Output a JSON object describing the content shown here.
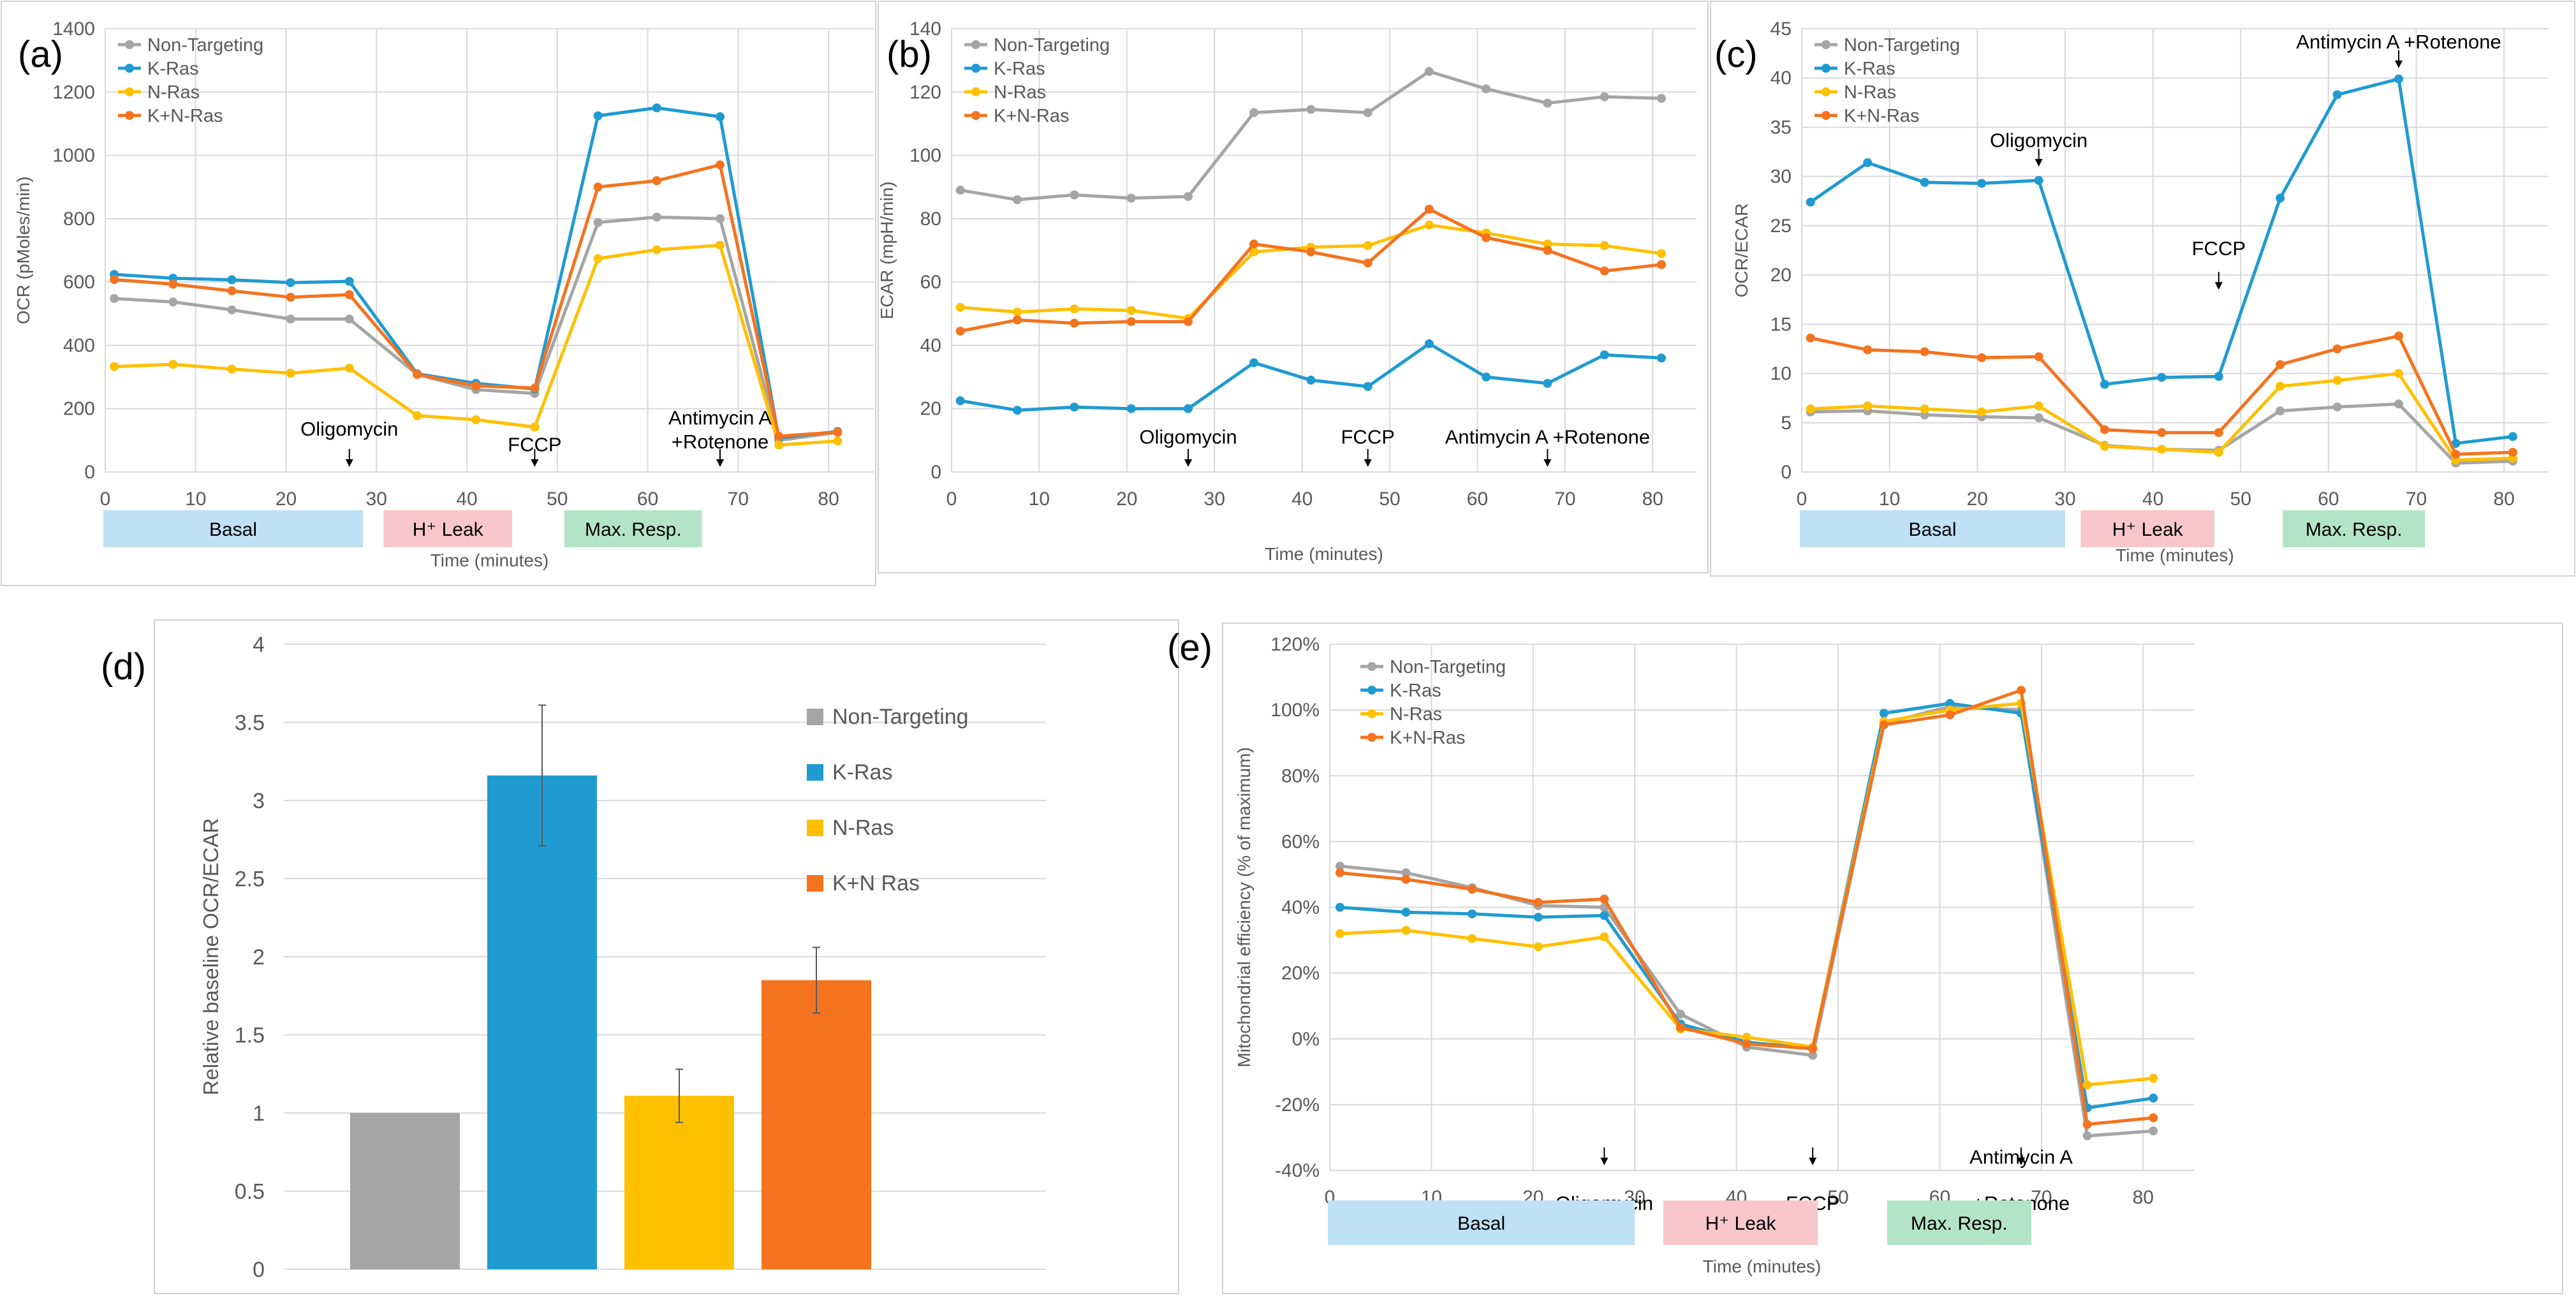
{
  "colors": {
    "non_targeting": "#a5a5a5",
    "k_ras": "#1f9bd1",
    "n_ras": "#ffc000",
    "kn_ras": "#f4731f",
    "basal_band": "#bfe1f5",
    "leak_band": "#f7c7c9",
    "maxresp_band": "#b4e4c6",
    "grid": "#d9d9d9",
    "axis_text": "#595959",
    "panel_border": "#d0d0d0"
  },
  "chart_data": [
    {
      "id": "a",
      "panel_label": "(a)",
      "type": "line",
      "xlabel": "Time (minutes)",
      "ylabel": "OCR (pMoles/min)",
      "xlim": [
        0,
        85
      ],
      "ylim": [
        0,
        1400
      ],
      "xticks": [
        0,
        10,
        20,
        30,
        40,
        50,
        60,
        70,
        80
      ],
      "yticks": [
        0,
        200,
        400,
        600,
        800,
        1000,
        1200,
        1400
      ],
      "x": [
        1,
        7.5,
        14,
        20.5,
        27,
        34.5,
        41,
        47.5,
        54.5,
        61,
        68,
        74.5,
        81
      ],
      "series": [
        {
          "name": "Non-Targeting",
          "color_key": "non_targeting",
          "values": [
            548,
            537,
            512,
            483,
            483,
            308,
            260,
            248,
            788,
            805,
            800,
            100,
            125
          ]
        },
        {
          "name": "K-Ras",
          "color_key": "k_ras",
          "values": [
            624,
            612,
            607,
            598,
            602,
            310,
            280,
            262,
            1125,
            1150,
            1122,
            108,
            128
          ]
        },
        {
          "name": "N-Ras",
          "color_key": "n_ras",
          "values": [
            333,
            340,
            325,
            312,
            328,
            178,
            165,
            142,
            674,
            702,
            716,
            85,
            98
          ]
        },
        {
          "name": "K+N-Ras",
          "color_key": "kn_ras",
          "values": [
            608,
            593,
            572,
            552,
            560,
            308,
            272,
            265,
            900,
            920,
            970,
            113,
            126
          ]
        }
      ],
      "annotations": [
        {
          "text": "Oligomycin",
          "x": 27,
          "y": 115
        },
        {
          "text": "FCCP",
          "x": 47.5,
          "y": 65
        },
        {
          "text": "Antimycin A",
          "x": 68,
          "y": 150
        },
        {
          "text": "+Rotenone",
          "x": 68,
          "y": 75
        }
      ],
      "bands": [
        {
          "label": "Basal",
          "x0": 0,
          "x1": 28.5,
          "color_key": "basal_band"
        },
        {
          "label": "H⁺ Leak",
          "x0": 31,
          "x1": 45,
          "color_key": "leak_band"
        },
        {
          "label": "Max. Resp.",
          "x0": 51,
          "x1": 66,
          "color_key": "maxresp_band"
        }
      ],
      "legend": {
        "placement": "top-left"
      }
    },
    {
      "id": "b",
      "panel_label": "(b)",
      "type": "line",
      "xlabel": "Time (minutes)",
      "ylabel": "ECAR (mpH/min)",
      "xlim": [
        0,
        85
      ],
      "ylim": [
        0,
        140
      ],
      "xticks": [
        0,
        10,
        20,
        30,
        40,
        50,
        60,
        70,
        80
      ],
      "yticks": [
        0,
        20,
        40,
        60,
        80,
        100,
        120,
        140
      ],
      "x": [
        1,
        7.5,
        14,
        20.5,
        27,
        34.5,
        41,
        47.5,
        54.5,
        61,
        68,
        74.5,
        81
      ],
      "series": [
        {
          "name": "Non-Targeting",
          "color_key": "non_targeting",
          "values": [
            89,
            86,
            87.5,
            86.5,
            87,
            113.5,
            114.5,
            113.5,
            126.5,
            121,
            116.5,
            118.5,
            118
          ]
        },
        {
          "name": "K-Ras",
          "color_key": "k_ras",
          "values": [
            22.5,
            19.5,
            20.5,
            20,
            20,
            34.5,
            29,
            27,
            40.5,
            30,
            28,
            37,
            36
          ]
        },
        {
          "name": "N-Ras",
          "color_key": "n_ras",
          "values": [
            52,
            50.5,
            51.5,
            51,
            48.5,
            69.5,
            71,
            71.5,
            78,
            75.5,
            72,
            71.5,
            69
          ]
        },
        {
          "name": "K+N-Ras",
          "color_key": "kn_ras",
          "values": [
            44.5,
            48,
            47,
            47.5,
            47.5,
            72,
            69.5,
            66,
            83,
            74,
            70,
            63.5,
            65.5
          ]
        }
      ],
      "annotations": [
        {
          "text": "Oligomycin",
          "x": 27,
          "y": 9
        },
        {
          "text": "FCCP",
          "x": 47.5,
          "y": 9
        },
        {
          "text": "Antimycin A +Rotenone",
          "x": 68,
          "y": 9
        }
      ],
      "legend": {
        "placement": "top-left"
      }
    },
    {
      "id": "c",
      "panel_label": "(c)",
      "type": "line",
      "xlabel": "Time (minutes)",
      "ylabel": "OCR/ECAR",
      "xlim": [
        0,
        85
      ],
      "ylim": [
        0,
        45
      ],
      "xticks": [
        0,
        10,
        20,
        30,
        40,
        50,
        60,
        70,
        80
      ],
      "yticks": [
        0,
        5,
        10,
        15,
        20,
        25,
        30,
        35,
        40,
        45
      ],
      "x": [
        1,
        7.5,
        14,
        20.5,
        27,
        34.5,
        41,
        47.5,
        54.5,
        61,
        68,
        74.5,
        81
      ],
      "series": [
        {
          "name": "Non-Targeting",
          "color_key": "non_targeting",
          "values": [
            6.1,
            6.2,
            5.8,
            5.6,
            5.5,
            2.7,
            2.3,
            2.2,
            6.2,
            6.6,
            6.9,
            0.9,
            1.1
          ]
        },
        {
          "name": "K-Ras",
          "color_key": "k_ras",
          "values": [
            27.4,
            31.4,
            29.4,
            29.3,
            29.6,
            8.9,
            9.6,
            9.7,
            27.8,
            38.3,
            39.9,
            2.9,
            3.6
          ]
        },
        {
          "name": "N-Ras",
          "color_key": "n_ras",
          "values": [
            6.4,
            6.7,
            6.4,
            6.1,
            6.7,
            2.6,
            2.3,
            2.0,
            8.7,
            9.3,
            10.0,
            1.2,
            1.4
          ]
        },
        {
          "name": "K+N-Ras",
          "color_key": "kn_ras",
          "values": [
            13.6,
            12.4,
            12.2,
            11.6,
            11.7,
            4.3,
            4.0,
            4.0,
            10.9,
            12.5,
            13.8,
            1.8,
            2.0
          ]
        }
      ],
      "annotations": [
        {
          "text": "Oligomycin",
          "x": 27,
          "y": 33
        },
        {
          "text": "FCCP",
          "x": 47.5,
          "y": 22
        },
        {
          "text": "Antimycin A +Rotenone",
          "x": 68,
          "y": 43
        }
      ],
      "bands": [
        {
          "label": "Basal",
          "x0": 0,
          "x1": 30,
          "color_key": "basal_band"
        },
        {
          "label": "H⁺ Leak",
          "x0": 32,
          "x1": 47,
          "color_key": "leak_band"
        },
        {
          "label": "Max. Resp.",
          "x0": 55,
          "x1": 71,
          "color_key": "maxresp_band"
        }
      ],
      "legend": {
        "placement": "top-left"
      }
    },
    {
      "id": "d",
      "panel_label": "(d)",
      "type": "bar",
      "ylabel": "Relative baseline OCR/ECAR",
      "ylim": [
        0,
        4
      ],
      "yticks": [
        0,
        0.5,
        1,
        1.5,
        2,
        2.5,
        3,
        3.5,
        4
      ],
      "categories": [
        "Non-Targeting",
        "K-Ras",
        "N-Ras",
        "K+N Ras"
      ],
      "color_keys": [
        "non_targeting",
        "k_ras",
        "n_ras",
        "kn_ras"
      ],
      "values": [
        1.0,
        3.16,
        1.11,
        1.85
      ],
      "errors": [
        0.0,
        0.45,
        0.17,
        0.21
      ],
      "legend": {
        "placement": "right"
      }
    },
    {
      "id": "e",
      "panel_label": "(e)",
      "type": "line",
      "xlabel": "Time (minutes)",
      "ylabel": "Mitochondrial efficiency (% of maximum)",
      "xlim": [
        0,
        85
      ],
      "ylim": [
        -40,
        120
      ],
      "xticks": [
        0,
        10,
        20,
        30,
        40,
        50,
        60,
        70,
        80
      ],
      "yticks": [
        -40,
        -20,
        0,
        20,
        40,
        60,
        80,
        100,
        120
      ],
      "ytick_labels": [
        "-40%",
        "-20%",
        "0%",
        "20%",
        "40%",
        "60%",
        "80%",
        "100%",
        "120%"
      ],
      "x": [
        1,
        7.5,
        14,
        20.5,
        27,
        34.5,
        41,
        47.5,
        54.5,
        61,
        68,
        74.5,
        81
      ],
      "series": [
        {
          "name": "Non-Targeting",
          "color_key": "non_targeting",
          "values": [
            52.5,
            50.5,
            46,
            40.5,
            40,
            7.5,
            -2.5,
            -5,
            96,
            101,
            100,
            -29.5,
            -28
          ]
        },
        {
          "name": "K-Ras",
          "color_key": "k_ras",
          "values": [
            40,
            38.5,
            38,
            37,
            37.5,
            4.5,
            -1,
            -3,
            99,
            102,
            99,
            -21,
            -18
          ]
        },
        {
          "name": "N-Ras",
          "color_key": "n_ras",
          "values": [
            32,
            33,
            30.5,
            28,
            31,
            3,
            0.5,
            -2.5,
            96.5,
            100,
            102,
            -14,
            -12
          ]
        },
        {
          "name": "K+N-Ras",
          "color_key": "kn_ras",
          "values": [
            50.5,
            48.5,
            45.5,
            41.5,
            42.5,
            3.5,
            -1.5,
            -3,
            95.5,
            98.5,
            106,
            -26,
            -24
          ]
        }
      ],
      "annotations": [
        {
          "text": "Oligomycin",
          "x": 27,
          "y": -52
        },
        {
          "text": "FCCP",
          "x": 47.5,
          "y": -52
        },
        {
          "text": "Antimycin A",
          "x": 68,
          "y": -38
        },
        {
          "text": "+Rotenone",
          "x": 68,
          "y": -52
        }
      ],
      "bands": [
        {
          "label": "Basal",
          "x0": 0,
          "x1": 30,
          "color_key": "basal_band"
        },
        {
          "label": "H⁺ Leak",
          "x0": 33,
          "x1": 48,
          "color_key": "leak_band"
        },
        {
          "label": "Max. Resp.",
          "x0": 55,
          "x1": 69,
          "color_key": "maxresp_band"
        }
      ],
      "legend": {
        "placement": "top-left"
      }
    }
  ]
}
